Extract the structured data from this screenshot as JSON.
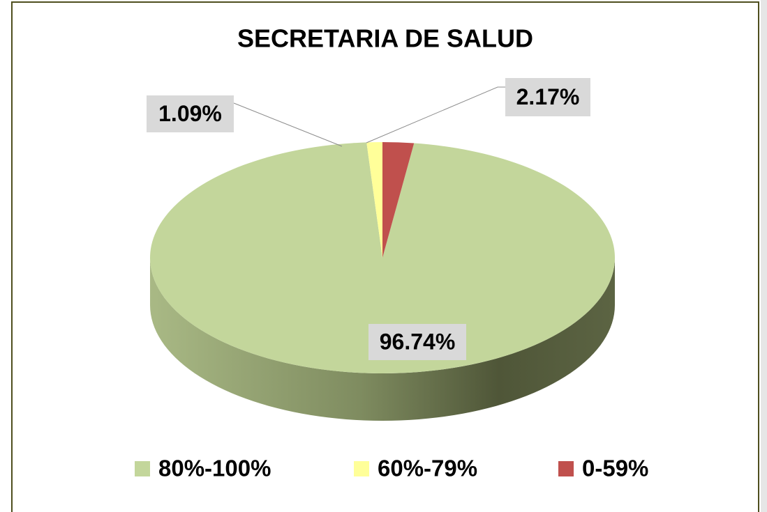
{
  "chart_data": {
    "type": "pie",
    "title": "SECRETARIA DE SALUD",
    "categories": [
      "80%-100%",
      "60%-79%",
      "0-59%"
    ],
    "values": [
      96.74,
      1.09,
      2.17
    ],
    "value_labels": [
      "96.74%",
      "1.09%",
      "2.17%"
    ],
    "colors": [
      "#c3d69b",
      "#ffff99",
      "#c0504d"
    ]
  }
}
